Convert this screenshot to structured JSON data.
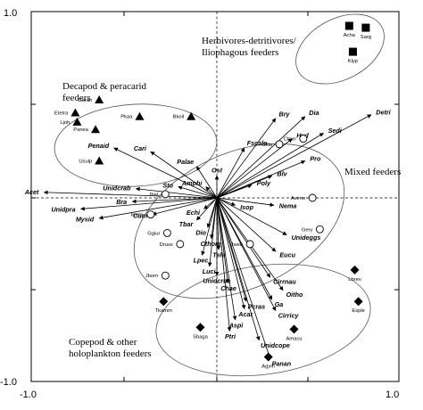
{
  "chart_data": {
    "type": "scatter",
    "title": "",
    "xlabel": "",
    "ylabel": "",
    "xlim": [
      -1.0,
      1.0
    ],
    "ylim": [
      -1.0,
      1.0
    ],
    "x_ticks": [
      "-1.0",
      "1.0"
    ],
    "y_ticks": [
      "1.0",
      "-1.0"
    ],
    "grid": false,
    "zero_lines": true,
    "group_labels": [
      {
        "id": "herbivores",
        "lines": [
          "Herbivores-detritivores/",
          "Iliophagous feeders"
        ]
      },
      {
        "id": "decapod",
        "lines": [
          "Decapod & peracarid",
          "feeders"
        ]
      },
      {
        "id": "mixed",
        "lines": [
          "Mixed feeders"
        ]
      },
      {
        "id": "copepod",
        "lines": [
          "Copepod & other",
          "holoplankton feeders"
        ]
      }
    ],
    "vectors": [
      {
        "name": "Detri",
        "x": 0.84,
        "y": 0.45
      },
      {
        "name": "Dia",
        "x": 0.48,
        "y": 0.44
      },
      {
        "name": "Bry",
        "x": 0.32,
        "y": 0.43
      },
      {
        "name": "Sedi",
        "x": 0.58,
        "y": 0.35
      },
      {
        "name": "Hyd",
        "x": 0.41,
        "y": 0.32
      },
      {
        "name": "Fscale",
        "x": 0.15,
        "y": 0.27
      },
      {
        "name": "Pro",
        "x": 0.48,
        "y": 0.2
      },
      {
        "name": "Blv",
        "x": 0.3,
        "y": 0.12
      },
      {
        "name": "Poly",
        "x": 0.19,
        "y": 0.07
      },
      {
        "name": "Nema",
        "x": 0.31,
        "y": -0.04
      },
      {
        "name": "Isop",
        "x": 0.1,
        "y": -0.04
      },
      {
        "name": "Ost",
        "x": 0.0,
        "y": 0.12
      },
      {
        "name": "Palae",
        "x": -0.11,
        "y": 0.17
      },
      {
        "name": "Cari",
        "x": -0.36,
        "y": 0.25
      },
      {
        "name": "Penaid",
        "x": -0.56,
        "y": 0.27
      },
      {
        "name": "Sto",
        "x": -0.21,
        "y": 0.06
      },
      {
        "name": "Amphi",
        "x": -0.06,
        "y": 0.06
      },
      {
        "name": "Unidcrab",
        "x": -0.44,
        "y": 0.05
      },
      {
        "name": "Acet",
        "x": -0.94,
        "y": 0.03
      },
      {
        "name": "Bra",
        "x": -0.46,
        "y": -0.02
      },
      {
        "name": "Unidpra",
        "x": -0.74,
        "y": -0.06
      },
      {
        "name": "Mysid",
        "x": -0.64,
        "y": -0.11
      },
      {
        "name": "Echi",
        "x": -0.07,
        "y": -0.06
      },
      {
        "name": "Cum",
        "x": -0.35,
        "y": -0.09
      },
      {
        "name": "Tbar",
        "x": -0.11,
        "y": -0.12
      },
      {
        "name": "Dio",
        "x": -0.05,
        "y": -0.16
      },
      {
        "name": "Cthom",
        "x": -0.03,
        "y": -0.22
      },
      {
        "name": "Lpec",
        "x": -0.08,
        "y": -0.31
      },
      {
        "name": "Tele",
        "x": 0.01,
        "y": -0.28
      },
      {
        "name": "Luci",
        "x": -0.04,
        "y": -0.37
      },
      {
        "name": "Unidcrus",
        "x": 0.0,
        "y": -0.42
      },
      {
        "name": "Chae",
        "x": 0.06,
        "y": -0.46
      },
      {
        "name": "Unideggs",
        "x": 0.38,
        "y": -0.2
      },
      {
        "name": "Eucu",
        "x": 0.32,
        "y": -0.29
      },
      {
        "name": "Cirrnau",
        "x": 0.29,
        "y": -0.43
      },
      {
        "name": "Oitho",
        "x": 0.36,
        "y": -0.5
      },
      {
        "name": "Ga",
        "x": 0.3,
        "y": -0.55
      },
      {
        "name": "Cirricy",
        "x": 0.32,
        "y": -0.61
      },
      {
        "name": "Pcras",
        "x": 0.16,
        "y": -0.56
      },
      {
        "name": "Acar",
        "x": 0.15,
        "y": -0.6
      },
      {
        "name": "Aspi",
        "x": 0.1,
        "y": -0.66
      },
      {
        "name": "Ptri",
        "x": 0.07,
        "y": -0.72
      },
      {
        "name": "Unidcope",
        "x": 0.23,
        "y": -0.77
      },
      {
        "name": "Panan",
        "x": 0.29,
        "y": -0.87
      }
    ],
    "species": [
      {
        "name": "Acha",
        "x": 0.72,
        "y": 0.93,
        "symbol": "square"
      },
      {
        "name": "Sarg",
        "x": 0.81,
        "y": 0.92,
        "symbol": "square"
      },
      {
        "name": "Klyp",
        "x": 0.74,
        "y": 0.79,
        "symbol": "square"
      },
      {
        "name": "Caran",
        "x": -0.64,
        "y": 0.53,
        "symbol": "triangle"
      },
      {
        "name": "Pkaa",
        "x": -0.42,
        "y": 0.44,
        "symbol": "triangle"
      },
      {
        "name": "Bkoil",
        "x": -0.14,
        "y": 0.44,
        "symbol": "triangle"
      },
      {
        "name": "Etetra",
        "x": -0.77,
        "y": 0.46,
        "symbol": "triangle"
      },
      {
        "name": "Ljoh",
        "x": -0.76,
        "y": 0.41,
        "symbol": "triangle"
      },
      {
        "name": "Panea",
        "x": -0.66,
        "y": 0.37,
        "symbol": "triangle"
      },
      {
        "name": "Usulp",
        "x": -0.64,
        "y": 0.2,
        "symbol": "triangle"
      },
      {
        "name": "Gfila",
        "x": 0.34,
        "y": 0.29,
        "symbol": "circle"
      },
      {
        "name": "Ctrun",
        "x": 0.47,
        "y": 0.32,
        "symbol": "circle"
      },
      {
        "name": "Aveno",
        "x": 0.52,
        "y": 0.0,
        "symbol": "circle"
      },
      {
        "name": "Jbel",
        "x": -0.28,
        "y": 0.02,
        "symbol": "circle"
      },
      {
        "name": "Imela",
        "x": -0.36,
        "y": -0.09,
        "symbol": "circle"
      },
      {
        "name": "Ggiur",
        "x": -0.27,
        "y": -0.19,
        "symbol": "circle"
      },
      {
        "name": "Druss",
        "x": -0.2,
        "y": -0.25,
        "symbol": "circle"
      },
      {
        "name": "Jweb",
        "x": 0.18,
        "y": -0.25,
        "symbol": "circle"
      },
      {
        "name": "Gery",
        "x": 0.56,
        "y": -0.17,
        "symbol": "circle"
      },
      {
        "name": "Jborn",
        "x": -0.28,
        "y": -0.42,
        "symbol": "circle"
      },
      {
        "name": "Tkamm",
        "x": -0.29,
        "y": -0.56,
        "symbol": "diamond"
      },
      {
        "name": "Lbrev",
        "x": 0.75,
        "y": -0.39,
        "symbol": "diamond"
      },
      {
        "name": "Esple",
        "x": 0.77,
        "y": -0.56,
        "symbol": "diamond"
      },
      {
        "name": "Sbaga",
        "x": -0.09,
        "y": -0.7,
        "symbol": "diamond"
      },
      {
        "name": "Amacu",
        "x": 0.42,
        "y": -0.71,
        "symbol": "diamond"
      },
      {
        "name": "Agym",
        "x": 0.28,
        "y": -0.86,
        "symbol": "diamond"
      }
    ]
  }
}
